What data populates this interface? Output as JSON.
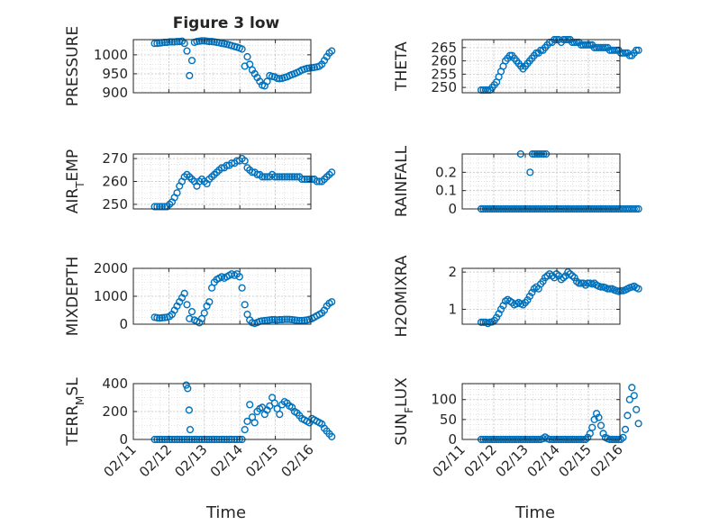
{
  "figure": {
    "title": "Figure 3 low",
    "xlabel": "Time",
    "xticks": [
      "02/11",
      "02/12",
      "02/13",
      "02/14",
      "02/15",
      "02/16"
    ],
    "marker_color": "#0072BD",
    "grid": true,
    "grid_minor": true
  },
  "chart_data": [
    {
      "type": "scatter",
      "id": "pressure",
      "title": "Figure 3 low",
      "ylabel": "PRESSURE",
      "xlabel": "",
      "ylim": [
        900,
        1040
      ],
      "yticks": [
        900,
        950,
        1000
      ],
      "x": [
        0.6,
        0.67,
        0.74,
        0.81,
        0.88,
        0.95,
        1.02,
        1.09,
        1.16,
        1.23,
        1.3,
        1.37,
        1.44,
        1.51,
        1.58,
        1.65,
        1.72,
        1.79,
        1.86,
        1.93,
        2.0,
        2.07,
        2.14,
        2.21,
        2.28,
        2.35,
        2.42,
        2.49,
        2.56,
        2.63,
        2.7,
        2.77,
        2.85,
        2.92,
        2.99,
        3.06,
        3.14,
        3.21,
        3.28,
        3.35,
        3.42,
        3.49,
        3.56,
        3.63,
        3.7,
        3.77,
        3.84,
        3.91,
        3.98,
        4.05,
        4.12,
        4.19,
        4.26,
        4.33,
        4.4,
        4.47,
        4.54,
        4.61,
        4.68,
        4.75,
        4.82,
        4.89,
        4.96,
        5.03,
        5.1,
        5.17,
        5.24,
        5.31,
        5.38,
        5.45,
        5.52,
        5.59
      ],
      "y": [
        1030,
        1030,
        1031,
        1032,
        1033,
        1033,
        1034,
        1034,
        1034,
        1035,
        1035,
        1036,
        1030,
        1010,
        945,
        985,
        1033,
        1035,
        1036,
        1037,
        1037,
        1036,
        1035,
        1035,
        1034,
        1033,
        1032,
        1030,
        1029,
        1028,
        1026,
        1024,
        1022,
        1020,
        1018,
        1015,
        970,
        995,
        975,
        960,
        950,
        940,
        930,
        920,
        918,
        930,
        945,
        943,
        942,
        938,
        937,
        938,
        940,
        942,
        945,
        948,
        950,
        953,
        956,
        960,
        962,
        964,
        965,
        966,
        967,
        968,
        970,
        975,
        985,
        995,
        1005,
        1010
      ]
    },
    {
      "type": "scatter",
      "id": "theta",
      "ylabel": "THETA",
      "xlabel": "",
      "ylim": [
        248,
        268
      ],
      "yticks": [
        250,
        255,
        260,
        265
      ],
      "x": [
        0.6,
        0.67,
        0.74,
        0.81,
        0.88,
        0.95,
        1.02,
        1.09,
        1.16,
        1.23,
        1.3,
        1.37,
        1.44,
        1.51,
        1.58,
        1.65,
        1.72,
        1.79,
        1.86,
        1.93,
        2.0,
        2.07,
        2.14,
        2.21,
        2.28,
        2.35,
        2.42,
        2.49,
        2.56,
        2.63,
        2.7,
        2.77,
        2.85,
        2.92,
        2.99,
        3.06,
        3.14,
        3.21,
        3.28,
        3.35,
        3.42,
        3.49,
        3.56,
        3.63,
        3.7,
        3.77,
        3.84,
        3.91,
        3.98,
        4.05,
        4.12,
        4.19,
        4.26,
        4.33,
        4.4,
        4.47,
        4.54,
        4.61,
        4.68,
        4.75,
        4.82,
        4.89,
        4.96,
        5.03,
        5.1,
        5.17,
        5.24,
        5.31,
        5.38,
        5.45,
        5.52,
        5.59
      ],
      "y": [
        249,
        249,
        249,
        249,
        249,
        250,
        251,
        252,
        254,
        256,
        258,
        260,
        261,
        262,
        262,
        261,
        260,
        259,
        258,
        257,
        258,
        259,
        260,
        261,
        262,
        263,
        263,
        264,
        264,
        265,
        266,
        267,
        267,
        268,
        268,
        268,
        267,
        268,
        268,
        268,
        268,
        267,
        267,
        267,
        267,
        266,
        266,
        266,
        266,
        266,
        266,
        265,
        265,
        265,
        265,
        265,
        265,
        265,
        264,
        264,
        264,
        264,
        264,
        263,
        263,
        263,
        263,
        262,
        262,
        263,
        264,
        264
      ]
    },
    {
      "type": "scatter",
      "id": "air-temp",
      "ylabel": "AIR_TEMP",
      "xlabel": "",
      "ylim": [
        248,
        272
      ],
      "yticks": [
        250,
        260,
        270
      ],
      "x": [
        0.6,
        0.67,
        0.74,
        0.81,
        0.88,
        0.95,
        1.02,
        1.09,
        1.16,
        1.23,
        1.3,
        1.37,
        1.44,
        1.51,
        1.58,
        1.65,
        1.72,
        1.79,
        1.86,
        1.93,
        2.0,
        2.07,
        2.14,
        2.21,
        2.28,
        2.35,
        2.42,
        2.49,
        2.56,
        2.63,
        2.7,
        2.77,
        2.85,
        2.92,
        2.99,
        3.06,
        3.14,
        3.21,
        3.28,
        3.35,
        3.42,
        3.49,
        3.56,
        3.63,
        3.7,
        3.77,
        3.84,
        3.91,
        3.98,
        4.05,
        4.12,
        4.19,
        4.26,
        4.33,
        4.4,
        4.47,
        4.54,
        4.61,
        4.68,
        4.75,
        4.82,
        4.89,
        4.96,
        5.03,
        5.1,
        5.17,
        5.24,
        5.31,
        5.38,
        5.45,
        5.52,
        5.59
      ],
      "y": [
        249,
        249,
        249,
        249,
        249,
        249,
        250,
        251,
        253,
        255,
        258,
        260,
        262,
        263,
        262,
        261,
        260,
        258,
        260,
        261,
        260,
        259,
        261,
        262,
        263,
        264,
        265,
        266,
        266,
        267,
        267,
        268,
        268,
        269,
        269,
        270,
        269,
        266,
        265,
        264,
        264,
        263,
        263,
        262,
        262,
        262,
        262,
        263,
        262,
        262,
        262,
        262,
        262,
        262,
        262,
        262,
        262,
        262,
        262,
        261,
        261,
        261,
        261,
        261,
        261,
        260,
        260,
        260,
        261,
        262,
        263,
        264
      ]
    },
    {
      "type": "scatter",
      "id": "rainfall",
      "ylabel": "RAINFALL",
      "xlabel": "",
      "ylim": [
        0,
        0.3
      ],
      "yticks": [
        0,
        0.1,
        0.2
      ],
      "x": [
        0.6,
        0.67,
        0.74,
        0.81,
        0.88,
        0.95,
        1.02,
        1.09,
        1.16,
        1.23,
        1.3,
        1.37,
        1.44,
        1.51,
        1.58,
        1.65,
        1.72,
        1.79,
        1.86,
        1.93,
        2.0,
        2.07,
        2.14,
        2.21,
        2.28,
        2.35,
        2.42,
        2.49,
        2.56,
        2.63,
        2.7,
        2.77,
        2.85,
        2.92,
        2.99,
        3.06,
        3.14,
        3.21,
        3.28,
        3.35,
        3.42,
        3.49,
        3.56,
        3.63,
        3.7,
        3.77,
        3.84,
        3.91,
        3.98,
        4.05,
        4.12,
        4.19,
        4.26,
        4.33,
        4.4,
        4.47,
        4.54,
        4.61,
        4.68,
        4.75,
        4.82,
        4.89,
        4.96,
        5.03,
        5.1,
        5.17,
        5.24,
        5.31,
        5.38,
        5.45,
        5.52,
        5.59,
        1.85,
        2.15,
        2.23,
        2.3,
        2.37,
        2.44,
        2.51,
        2.58,
        2.66
      ],
      "y": [
        0,
        0,
        0,
        0,
        0,
        0,
        0,
        0,
        0,
        0,
        0,
        0,
        0,
        0,
        0,
        0,
        0,
        0,
        0,
        0,
        0,
        0,
        0,
        0,
        0,
        0,
        0,
        0,
        0,
        0,
        0,
        0,
        0,
        0,
        0,
        0,
        0,
        0,
        0,
        0,
        0,
        0,
        0,
        0,
        0,
        0,
        0,
        0,
        0,
        0,
        0,
        0,
        0,
        0,
        0,
        0,
        0,
        0,
        0,
        0,
        0,
        0,
        0,
        0,
        0,
        0,
        0,
        0,
        0,
        0,
        0,
        0,
        0.3,
        0.2,
        0.3,
        0.3,
        0.3,
        0.3,
        0.3,
        0.3,
        0.3
      ]
    },
    {
      "type": "scatter",
      "id": "mixdepth",
      "ylabel": "MIXDEPTH",
      "xlabel": "",
      "ylim": [
        0,
        2000
      ],
      "yticks": [
        0,
        1000,
        2000
      ],
      "x": [
        0.6,
        0.67,
        0.74,
        0.81,
        0.88,
        0.95,
        1.02,
        1.09,
        1.16,
        1.23,
        1.3,
        1.37,
        1.44,
        1.51,
        1.58,
        1.65,
        1.72,
        1.79,
        1.86,
        1.93,
        2.0,
        2.07,
        2.14,
        2.21,
        2.28,
        2.35,
        2.42,
        2.49,
        2.56,
        2.63,
        2.7,
        2.77,
        2.85,
        2.92,
        2.99,
        3.06,
        3.14,
        3.21,
        3.28,
        3.35,
        3.42,
        3.49,
        3.56,
        3.63,
        3.7,
        3.77,
        3.84,
        3.91,
        3.98,
        4.05,
        4.12,
        4.19,
        4.26,
        4.33,
        4.4,
        4.47,
        4.54,
        4.61,
        4.68,
        4.75,
        4.82,
        4.89,
        4.96,
        5.03,
        5.1,
        5.17,
        5.24,
        5.31,
        5.38,
        5.45,
        5.52,
        5.59
      ],
      "y": [
        250,
        230,
        220,
        230,
        240,
        250,
        280,
        350,
        500,
        650,
        800,
        950,
        1100,
        700,
        200,
        450,
        150,
        100,
        50,
        200,
        400,
        650,
        800,
        1300,
        1500,
        1600,
        1650,
        1700,
        1650,
        1700,
        1750,
        1800,
        1750,
        1800,
        1700,
        1300,
        700,
        350,
        150,
        50,
        30,
        60,
        100,
        120,
        130,
        140,
        150,
        160,
        160,
        150,
        160,
        160,
        170,
        170,
        170,
        160,
        150,
        140,
        130,
        130,
        140,
        150,
        170,
        200,
        250,
        300,
        350,
        400,
        500,
        650,
        750,
        800
      ]
    },
    {
      "type": "scatter",
      "id": "h2omixra",
      "ylabel": "H2OMIXRA",
      "xlabel": "",
      "ylim": [
        0.6,
        2.1
      ],
      "yticks": [
        1,
        2
      ],
      "x": [
        0.6,
        0.67,
        0.74,
        0.81,
        0.88,
        0.95,
        1.02,
        1.09,
        1.16,
        1.23,
        1.3,
        1.37,
        1.44,
        1.51,
        1.58,
        1.65,
        1.72,
        1.79,
        1.86,
        1.93,
        2.0,
        2.07,
        2.14,
        2.21,
        2.28,
        2.35,
        2.42,
        2.49,
        2.56,
        2.63,
        2.7,
        2.77,
        2.85,
        2.92,
        2.99,
        3.06,
        3.14,
        3.21,
        3.28,
        3.35,
        3.42,
        3.49,
        3.56,
        3.63,
        3.7,
        3.77,
        3.84,
        3.91,
        3.98,
        4.05,
        4.12,
        4.19,
        4.26,
        4.33,
        4.4,
        4.47,
        4.54,
        4.61,
        4.68,
        4.75,
        4.82,
        4.89,
        4.96,
        5.03,
        5.1,
        5.17,
        5.24,
        5.31,
        5.38,
        5.45,
        5.52,
        5.59
      ],
      "y": [
        0.65,
        0.65,
        0.65,
        0.62,
        0.65,
        0.66,
        0.7,
        0.78,
        0.88,
        1.0,
        1.1,
        1.22,
        1.26,
        1.22,
        1.18,
        1.12,
        1.15,
        1.18,
        1.15,
        1.12,
        1.18,
        1.25,
        1.35,
        1.45,
        1.55,
        1.6,
        1.55,
        1.68,
        1.75,
        1.85,
        1.9,
        1.95,
        1.9,
        1.85,
        1.95,
        1.9,
        1.8,
        1.85,
        1.9,
        2.0,
        1.95,
        1.9,
        1.85,
        1.75,
        1.7,
        1.7,
        1.7,
        1.65,
        1.7,
        1.7,
        1.68,
        1.7,
        1.65,
        1.62,
        1.6,
        1.6,
        1.58,
        1.55,
        1.55,
        1.55,
        1.52,
        1.5,
        1.48,
        1.5,
        1.5,
        1.52,
        1.55,
        1.58,
        1.6,
        1.62,
        1.58,
        1.55
      ]
    },
    {
      "type": "scatter",
      "id": "terr-msl",
      "ylabel": "TERR_MSL",
      "xlabel": "Time",
      "ylim": [
        0,
        400
      ],
      "yticks": [
        0,
        200,
        400
      ],
      "x": [
        0.6,
        0.67,
        0.74,
        0.81,
        0.88,
        0.95,
        1.02,
        1.09,
        1.16,
        1.23,
        1.3,
        1.37,
        1.44,
        1.51,
        1.58,
        1.65,
        1.72,
        1.79,
        1.86,
        1.93,
        2.0,
        2.07,
        2.14,
        2.21,
        2.28,
        2.35,
        2.42,
        2.49,
        2.56,
        2.63,
        2.7,
        2.77,
        2.85,
        2.92,
        2.99,
        3.06,
        3.14,
        3.21,
        3.28,
        3.35,
        3.42,
        3.49,
        3.56,
        3.63,
        3.7,
        3.77,
        3.84,
        3.91,
        3.98,
        4.05,
        4.12,
        4.19,
        4.26,
        4.33,
        4.4,
        4.47,
        4.54,
        4.61,
        4.68,
        4.75,
        4.82,
        4.89,
        4.96,
        5.03,
        5.1,
        5.17,
        5.24,
        5.31,
        5.38,
        5.45,
        5.52,
        5.59,
        1.49,
        1.53,
        1.57,
        1.6
      ],
      "y": [
        0,
        0,
        0,
        0,
        0,
        0,
        0,
        0,
        0,
        0,
        0,
        0,
        0,
        0,
        0,
        0,
        0,
        0,
        0,
        0,
        0,
        0,
        0,
        0,
        0,
        0,
        0,
        0,
        0,
        0,
        0,
        0,
        0,
        0,
        0,
        0,
        70,
        130,
        250,
        160,
        120,
        200,
        220,
        230,
        180,
        210,
        240,
        300,
        260,
        220,
        180,
        250,
        270,
        260,
        240,
        230,
        200,
        190,
        170,
        150,
        140,
        130,
        120,
        150,
        140,
        130,
        120,
        110,
        80,
        60,
        40,
        20,
        390,
        365,
        210,
        70
      ]
    },
    {
      "type": "scatter",
      "id": "sun-flux",
      "ylabel": "SUN_FLUX",
      "xlabel": "Time",
      "ylim": [
        0,
        140
      ],
      "yticks": [
        0,
        50,
        100
      ],
      "x": [
        0.6,
        0.67,
        0.74,
        0.81,
        0.88,
        0.95,
        1.02,
        1.09,
        1.16,
        1.23,
        1.3,
        1.37,
        1.44,
        1.51,
        1.58,
        1.65,
        1.72,
        1.79,
        1.86,
        1.93,
        2.0,
        2.07,
        2.14,
        2.21,
        2.28,
        2.35,
        2.42,
        2.49,
        2.56,
        2.63,
        2.7,
        2.77,
        2.85,
        2.92,
        2.99,
        3.06,
        3.14,
        3.21,
        3.28,
        3.35,
        3.42,
        3.49,
        3.56,
        3.63,
        3.7,
        3.77,
        3.84,
        3.91,
        3.98,
        4.05,
        4.12,
        4.19,
        4.26,
        4.33,
        4.4,
        4.47,
        4.54,
        4.61,
        4.68,
        4.75,
        4.82,
        4.89,
        4.96,
        5.03,
        5.1,
        5.17,
        5.24,
        5.31,
        5.38,
        5.45,
        5.52,
        5.59
      ],
      "y": [
        0,
        0,
        0,
        0,
        0,
        0,
        0,
        0,
        0,
        0,
        0,
        0,
        0,
        0,
        0,
        0,
        0,
        0,
        0,
        0,
        0,
        0,
        0,
        0,
        0,
        0,
        0,
        0,
        2,
        6,
        2,
        0,
        0,
        0,
        0,
        0,
        0,
        0,
        0,
        0,
        0,
        0,
        0,
        0,
        0,
        0,
        0,
        0,
        5,
        15,
        30,
        50,
        65,
        55,
        35,
        15,
        5,
        2,
        0,
        0,
        0,
        0,
        0,
        0,
        5,
        25,
        60,
        100,
        130,
        110,
        75,
        40
      ]
    }
  ]
}
